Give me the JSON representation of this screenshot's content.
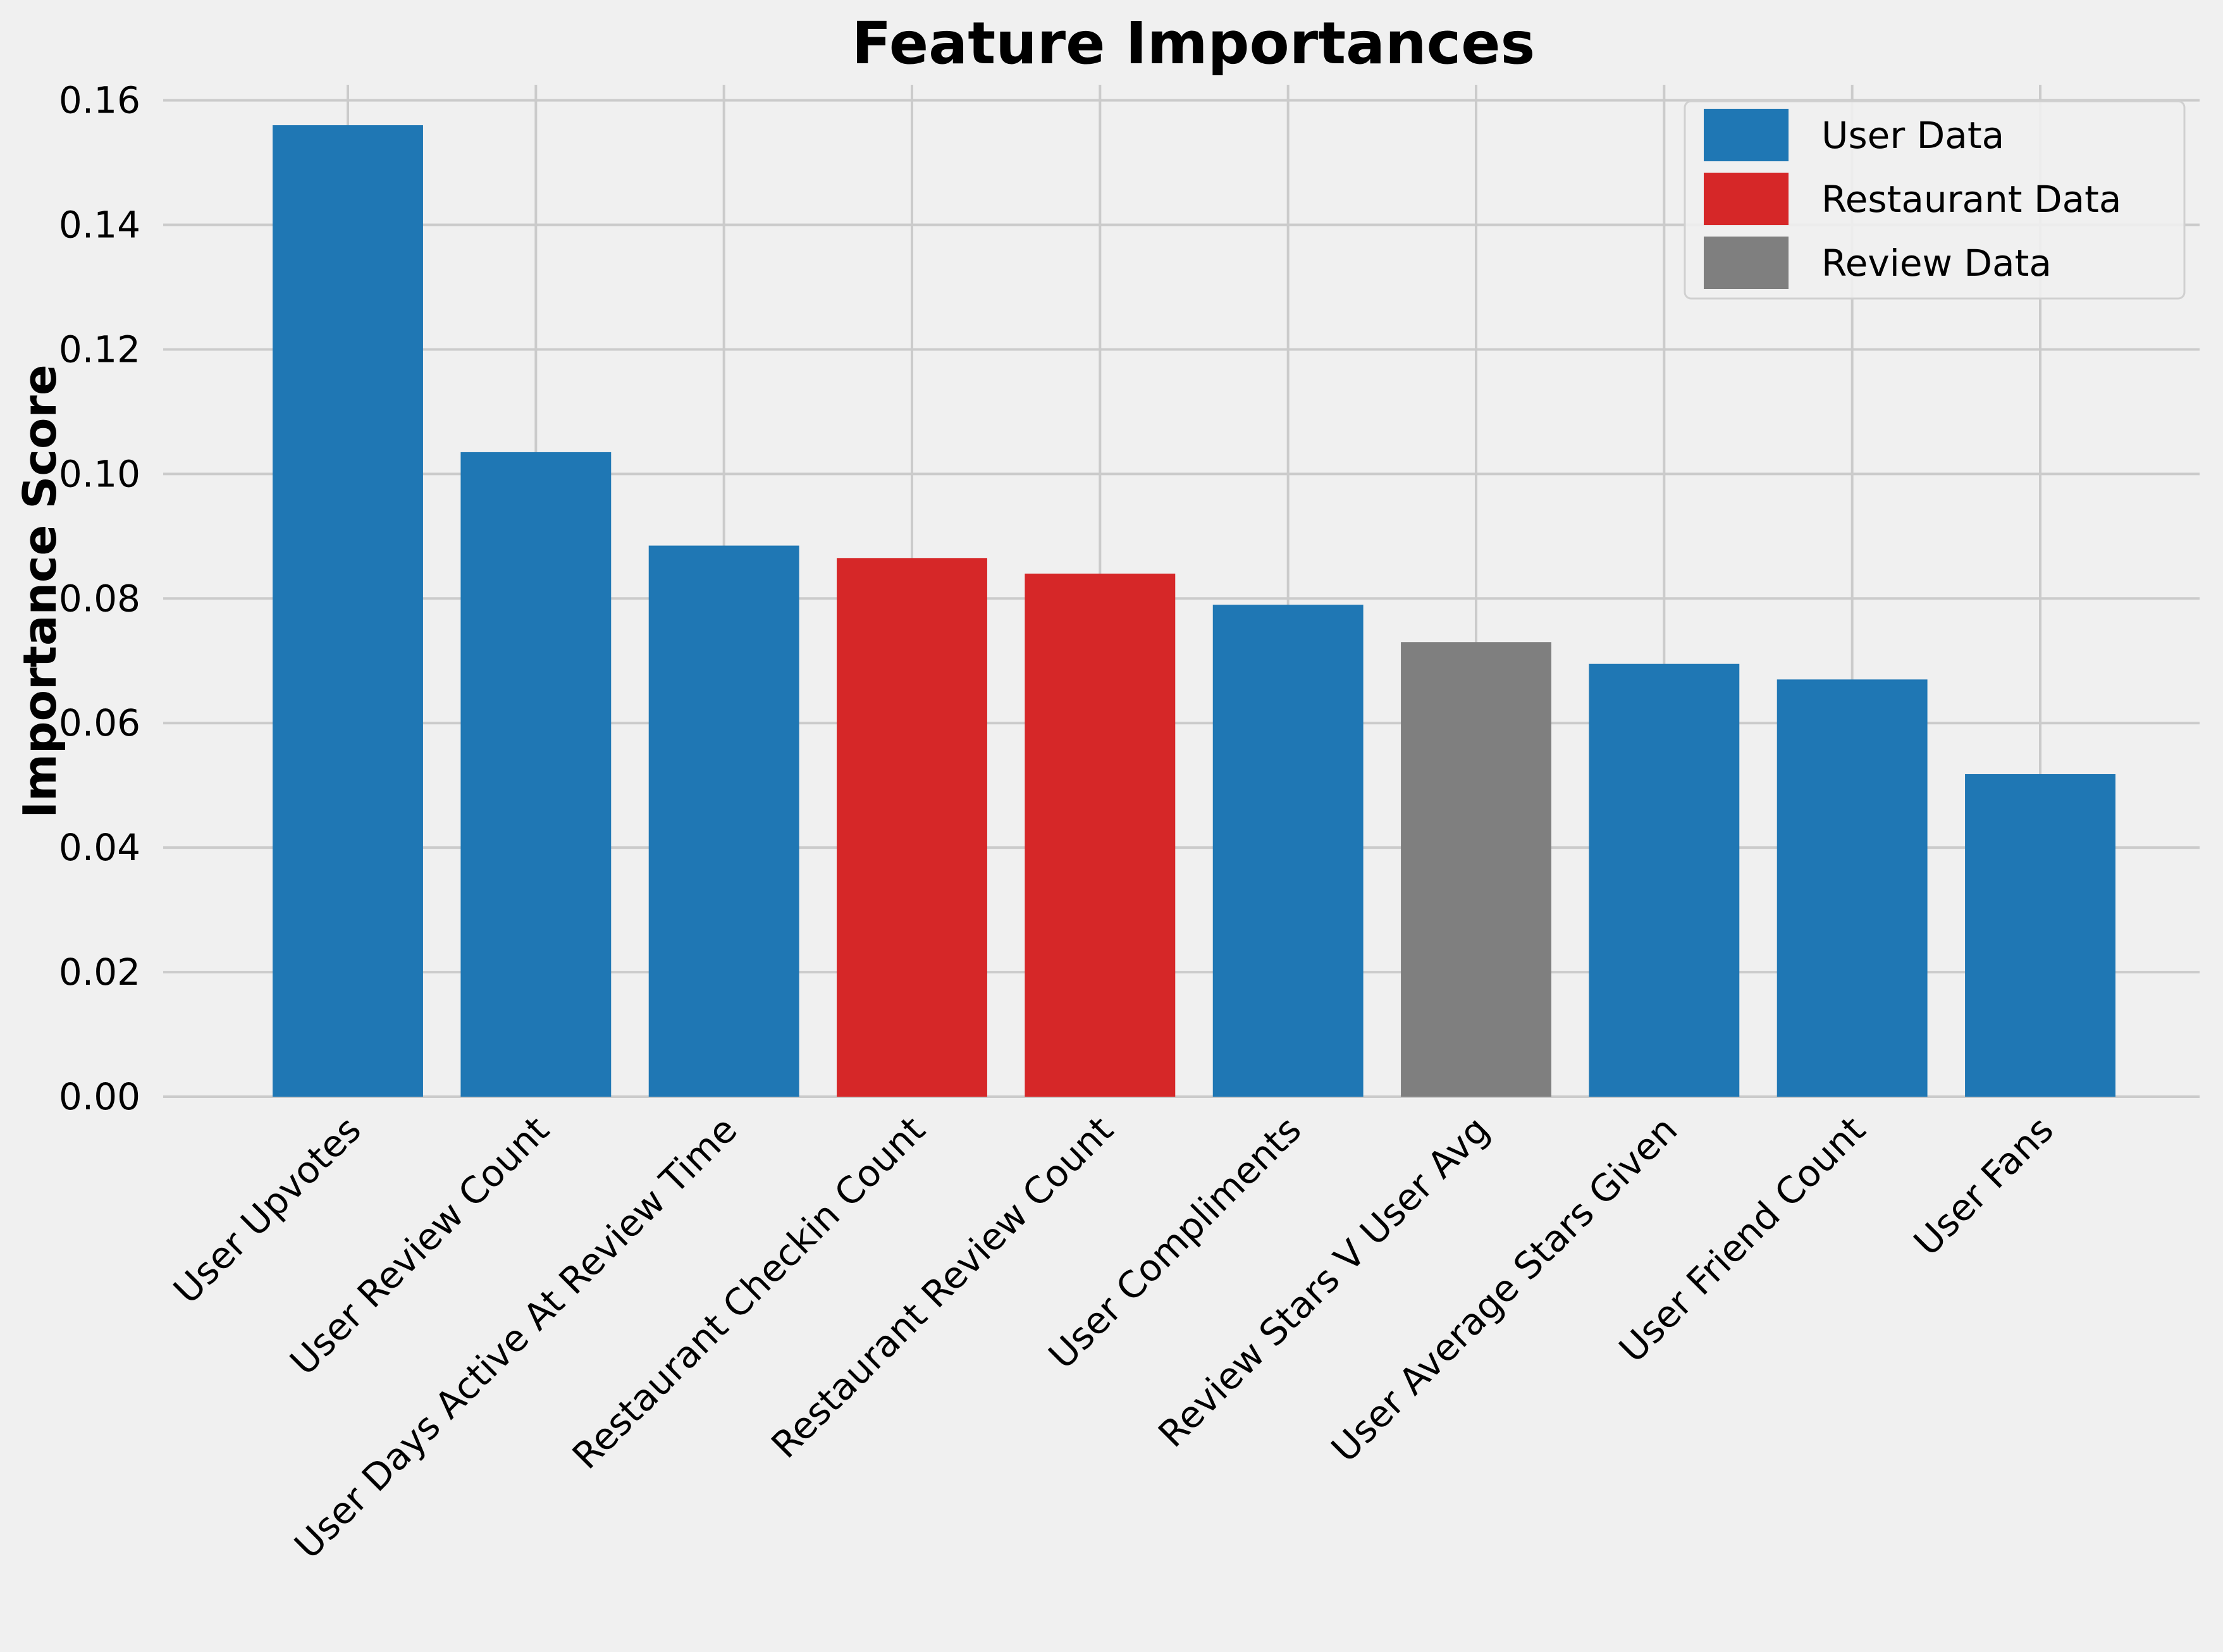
{
  "chart_data": {
    "type": "bar",
    "title": "Feature Importances",
    "xlabel": "",
    "ylabel": "Importance Score",
    "ylim": [
      0,
      0.1625
    ],
    "yticks": [
      "0.00",
      "0.02",
      "0.04",
      "0.06",
      "0.08",
      "0.10",
      "0.12",
      "0.14",
      "0.16"
    ],
    "ytick_values": [
      0,
      0.02,
      0.04,
      0.06,
      0.08,
      0.1,
      0.12,
      0.14,
      0.16
    ],
    "grid": true,
    "legend_position": "top-right",
    "categories": [
      "User Upvotes",
      "User Review Count",
      "User Days Active At Review Time",
      "Restaurant Checkin Count",
      "Restaurant Review Count",
      "User Compliments",
      "Review Stars V User Avg",
      "User Average Stars Given",
      "User Friend Count",
      "User Fans"
    ],
    "values": [
      0.156,
      0.1035,
      0.0885,
      0.0865,
      0.084,
      0.079,
      0.073,
      0.0695,
      0.067,
      0.0518
    ],
    "groups": [
      "User Data",
      "User Data",
      "User Data",
      "Restaurant Data",
      "Restaurant Data",
      "User Data",
      "Review Data",
      "User Data",
      "User Data",
      "User Data"
    ],
    "legend": [
      {
        "name": "User Data",
        "color": "#1f77b4"
      },
      {
        "name": "Restaurant Data",
        "color": "#d62728"
      },
      {
        "name": "Review Data",
        "color": "#7f7f7f"
      }
    ]
  }
}
